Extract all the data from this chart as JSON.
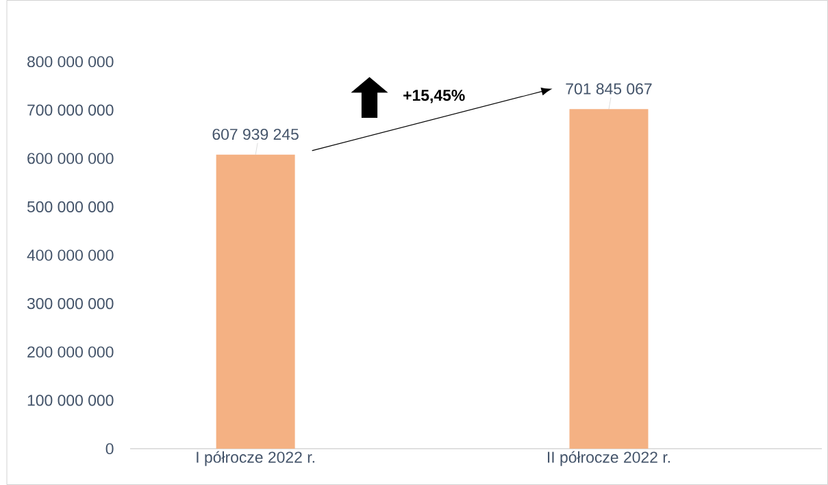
{
  "chart_data": {
    "type": "bar",
    "categories": [
      "I półrocze 2022 r.",
      "II półrocze 2022 r."
    ],
    "values": [
      607939245,
      701845067
    ],
    "value_labels": [
      "607 939 245",
      "701 845 067"
    ],
    "color": "#f4b183",
    "ylim": [
      0,
      800000000
    ],
    "yticks": [
      0,
      {
        "value": 100000000,
        "label": "100 000 000"
      },
      {
        "value": 200000000,
        "label": "200 000 000"
      },
      {
        "value": 300000000,
        "label": "300 000 000"
      },
      {
        "value": 400000000,
        "label": "400 000 000"
      },
      {
        "value": 500000000,
        "label": "500 000 000"
      },
      {
        "value": 600000000,
        "label": "600 000 000"
      },
      {
        "value": 700000000,
        "label": "700 000 000"
      },
      {
        "value": 800000000,
        "label": "800 000 000"
      }
    ],
    "annotations": [
      "+15,45%"
    ]
  }
}
